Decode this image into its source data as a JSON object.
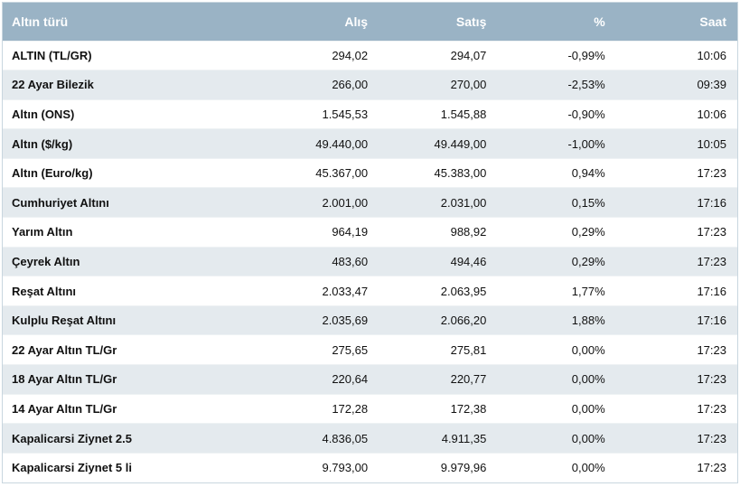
{
  "table": {
    "headers": {
      "name": "Altın türü",
      "buy": "Alış",
      "sell": "Satış",
      "change": "%",
      "time": "Saat"
    },
    "rows": [
      {
        "name": "ALTIN (TL/GR)",
        "buy": "294,02",
        "sell": "294,07",
        "change": "-0,99%",
        "time": "10:06"
      },
      {
        "name": "22 Ayar Bilezik",
        "buy": "266,00",
        "sell": "270,00",
        "change": "-2,53%",
        "time": "09:39"
      },
      {
        "name": "Altın (ONS)",
        "buy": "1.545,53",
        "sell": "1.545,88",
        "change": "-0,90%",
        "time": "10:06"
      },
      {
        "name": "Altın ($/kg)",
        "buy": "49.440,00",
        "sell": "49.449,00",
        "change": "-1,00%",
        "time": "10:05"
      },
      {
        "name": "Altın (Euro/kg)",
        "buy": "45.367,00",
        "sell": "45.383,00",
        "change": "0,94%",
        "time": "17:23"
      },
      {
        "name": "Cumhuriyet Altını",
        "buy": "2.001,00",
        "sell": "2.031,00",
        "change": "0,15%",
        "time": "17:16"
      },
      {
        "name": "Yarım Altın",
        "buy": "964,19",
        "sell": "988,92",
        "change": "0,29%",
        "time": "17:23"
      },
      {
        "name": "Çeyrek Altın",
        "buy": "483,60",
        "sell": "494,46",
        "change": "0,29%",
        "time": "17:23"
      },
      {
        "name": "Reşat Altını",
        "buy": "2.033,47",
        "sell": "2.063,95",
        "change": "1,77%",
        "time": "17:16"
      },
      {
        "name": "Kulplu Reşat Altını",
        "buy": "2.035,69",
        "sell": "2.066,20",
        "change": "1,88%",
        "time": "17:16"
      },
      {
        "name": "22 Ayar Altın TL/Gr",
        "buy": "275,65",
        "sell": "275,81",
        "change": "0,00%",
        "time": "17:23"
      },
      {
        "name": "18 Ayar Altın TL/Gr",
        "buy": "220,64",
        "sell": "220,77",
        "change": "0,00%",
        "time": "17:23"
      },
      {
        "name": "14 Ayar Altın TL/Gr",
        "buy": "172,28",
        "sell": "172,38",
        "change": "0,00%",
        "time": "17:23"
      },
      {
        "name": "Kapalicarsi Ziynet 2.5",
        "buy": "4.836,05",
        "sell": "4.911,35",
        "change": "0,00%",
        "time": "17:23"
      },
      {
        "name": "Kapalicarsi Ziynet 5 li",
        "buy": "9.793,00",
        "sell": "9.979,96",
        "change": "0,00%",
        "time": "17:23"
      }
    ]
  },
  "colors": {
    "header_bg": "#9ab3c5",
    "stripe_bg": "#e4eaee"
  }
}
